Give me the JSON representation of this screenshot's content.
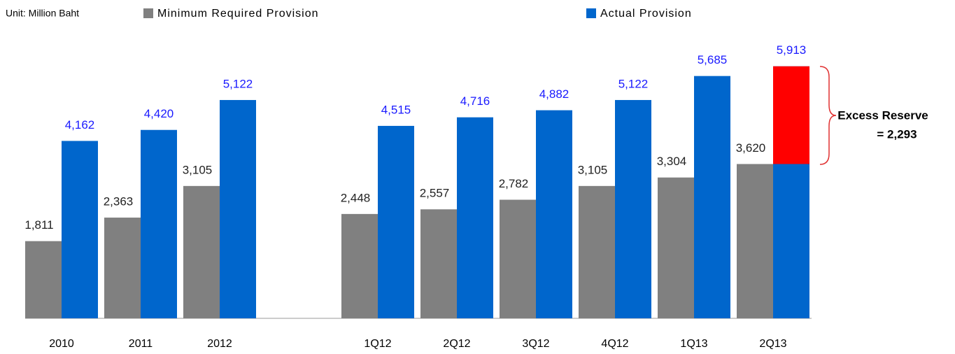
{
  "chart_data": {
    "type": "bar",
    "subtitle": "Unit: Million Baht",
    "categories": [
      "2010",
      "2011",
      "2012",
      null,
      "1Q12",
      "2Q12",
      "3Q12",
      "4Q12",
      "1Q13",
      "2Q13"
    ],
    "series": [
      {
        "name": "Minimum Required Provision",
        "color": "#808080",
        "values": [
          1811,
          2363,
          3105,
          null,
          2448,
          2557,
          2782,
          3105,
          3304,
          3620
        ],
        "value_labels": [
          "1,811",
          "2,363",
          "3,105",
          null,
          "2,448",
          "2,557",
          "2,782",
          "3,105",
          "3,304",
          "3,620"
        ]
      },
      {
        "name": "Actual Provision",
        "color": "#0066cc",
        "values": [
          4162,
          4420,
          5122,
          null,
          4515,
          4716,
          4882,
          5122,
          5685,
          5913
        ],
        "value_labels": [
          "4,162",
          "4,420",
          "5,122",
          null,
          "4,515",
          "4,716",
          "4,882",
          "5,122",
          "5,685",
          "5,913"
        ]
      }
    ],
    "excess": {
      "label": "Excess Reserve",
      "value": 2293,
      "value_label": "= 2,293",
      "color": "#ff0000"
    },
    "ylim": [
      0,
      6500
    ]
  }
}
